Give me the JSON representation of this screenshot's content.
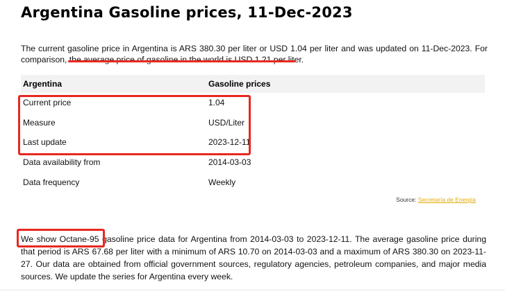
{
  "page": {
    "title": "Argentina Gasoline prices, 11-Dec-2023"
  },
  "intro": {
    "lead": "The current gasoline price in Argentina is ARS 380.30 per liter or USD 1.04 per liter and was updated on 11-Dec-2023. For comparison, ",
    "highlight": "the average price of gasoline in the world is USD 1.21 per liter",
    "tail": "."
  },
  "table": {
    "headers": [
      "Argentina",
      "Gasoline prices"
    ],
    "rows": [
      {
        "label": "Current price",
        "value": "1.04"
      },
      {
        "label": "Measure",
        "value": "USD/Liter"
      },
      {
        "label": "Last update",
        "value": "2023-12-11"
      },
      {
        "label": "Data availability from",
        "value": "2014-03-03"
      },
      {
        "label": "Data frequency",
        "value": "Weekly"
      }
    ]
  },
  "source": {
    "prefix": "Source: ",
    "link_text": "Secretaría de Energía"
  },
  "summary": {
    "highlight": "We show Octane-95",
    "text": " gasoline price data for Argentina from 2014-03-03 to 2023-12-11. The average gasoline price during that period is ARS 67.68 per liter with a minimum of ARS 10.70 on 2014-03-03 and a maximum of ARS 380.30 on 2023-11-27. Our data are obtained from official government sources, regulatory agencies, petroleum companies, and major media sources. We update the series for Argentina every week."
  },
  "colors": {
    "annotation_red": "#e8271f",
    "source_link": "#e0a800",
    "table_header_bg": "#f2f2f2"
  }
}
